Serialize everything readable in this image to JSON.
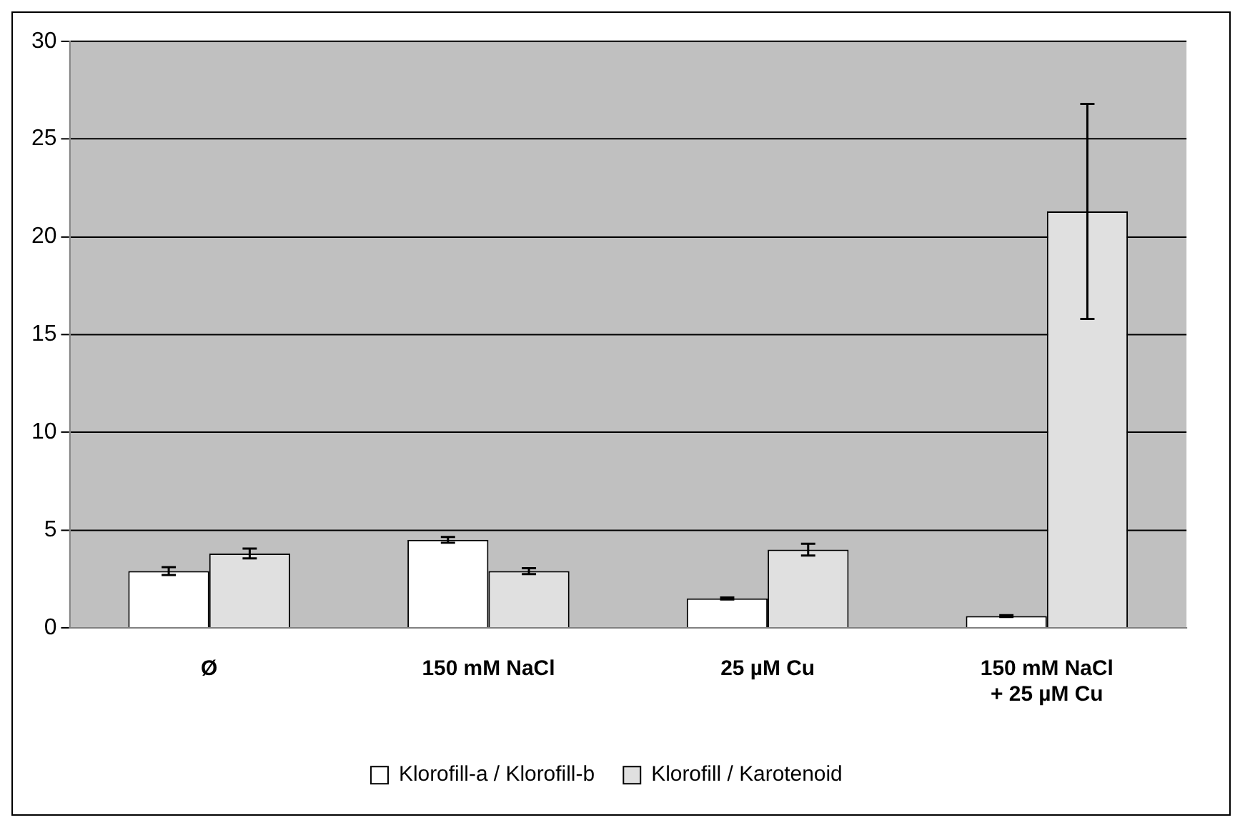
{
  "chart_data": {
    "type": "bar",
    "categories": [
      "Ø",
      "150 mM NaCl",
      "25 µM Cu",
      "150 mM NaCl\n+ 25 µM Cu"
    ],
    "series": [
      {
        "name": "Klorofill-a / Klorofill-b",
        "color": "#ffffff",
        "values": [
          2.9,
          4.5,
          1.5,
          0.6
        ],
        "errors": [
          0.2,
          0.15,
          0.05,
          0.05
        ]
      },
      {
        "name": "Klorofill / Karotenoid",
        "color": "#e0e0e0",
        "values": [
          3.8,
          2.9,
          4.0,
          21.3
        ],
        "errors": [
          0.25,
          0.15,
          0.3,
          5.5
        ]
      }
    ],
    "ylim": [
      0,
      30
    ],
    "yticks": [
      0,
      5,
      10,
      15,
      20,
      25,
      30
    ],
    "grid": "y",
    "legend": "bottom"
  }
}
